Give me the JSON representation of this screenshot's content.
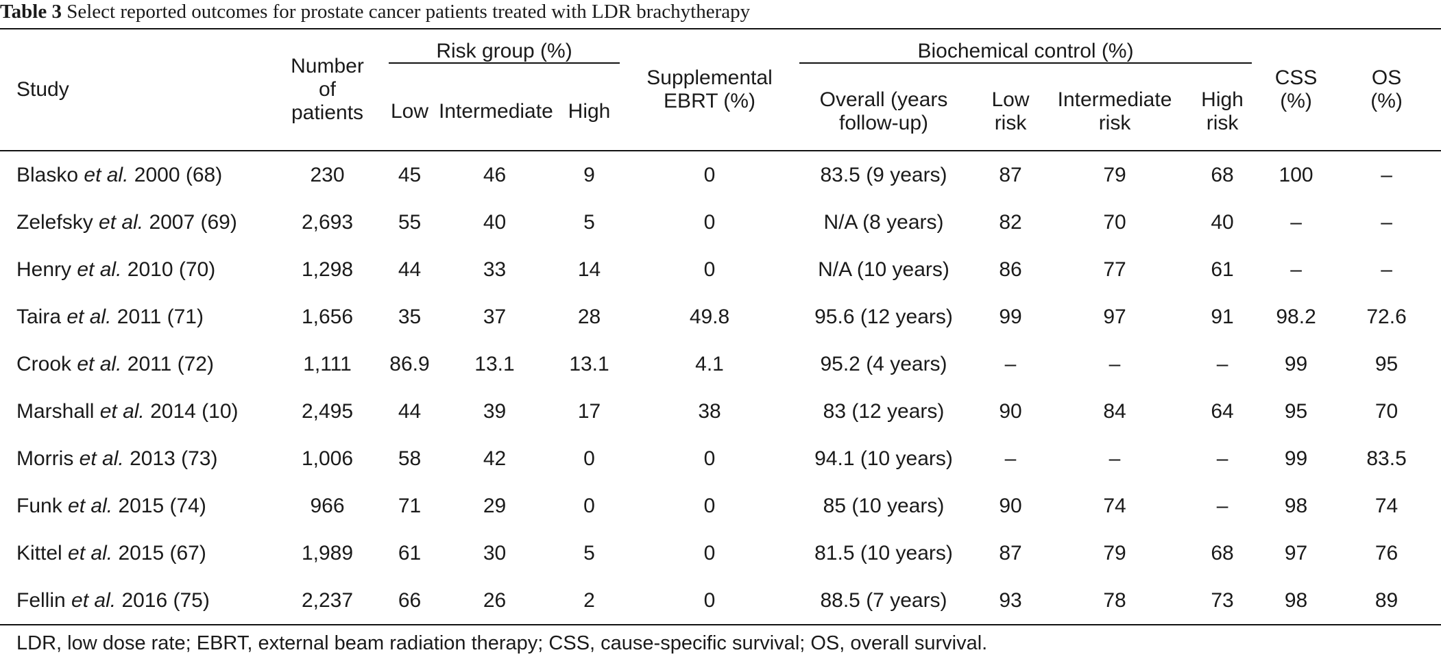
{
  "caption": {
    "label": "Table 3",
    "text": "Select reported outcomes for prostate cancer patients treated with LDR brachytherapy"
  },
  "headers": {
    "study": "Study",
    "patients": "Number of patients",
    "risk_group": "Risk group (%)",
    "low": "Low",
    "intermediate": "Intermediate",
    "high": "High",
    "ebrt": "Supplemental EBRT (%)",
    "biochemical": "Biochemical control (%)",
    "overall": "Overall (years follow-up)",
    "low_risk": "Low risk",
    "intermediate_risk": "Intermediate risk",
    "high_risk": "High risk",
    "css": "CSS (%)",
    "os": "OS (%)"
  },
  "rows": [
    {
      "author": "Blasko",
      "etal": "et al.",
      "year_ref": "2000 (68)",
      "patients": "230",
      "low": "45",
      "intermediate": "46",
      "high": "9",
      "ebrt": "0",
      "overall": "83.5 (9 years)",
      "low_risk": "87",
      "intermediate_risk": "79",
      "high_risk": "68",
      "css": "100",
      "os": "–"
    },
    {
      "author": "Zelefsky",
      "etal": "et al.",
      "year_ref": "2007 (69)",
      "patients": "2,693",
      "low": "55",
      "intermediate": "40",
      "high": "5",
      "ebrt": "0",
      "overall": "N/A (8 years)",
      "low_risk": "82",
      "intermediate_risk": "70",
      "high_risk": "40",
      "css": "–",
      "os": "–"
    },
    {
      "author": "Henry",
      "etal": "et al.",
      "year_ref": "2010 (70)",
      "patients": "1,298",
      "low": "44",
      "intermediate": "33",
      "high": "14",
      "ebrt": "0",
      "overall": "N/A (10 years)",
      "low_risk": "86",
      "intermediate_risk": "77",
      "high_risk": "61",
      "css": "–",
      "os": "–"
    },
    {
      "author": "Taira",
      "etal": "et al.",
      "year_ref": "2011 (71)",
      "patients": "1,656",
      "low": "35",
      "intermediate": "37",
      "high": "28",
      "ebrt": "49.8",
      "overall": "95.6 (12 years)",
      "low_risk": "99",
      "intermediate_risk": "97",
      "high_risk": "91",
      "css": "98.2",
      "os": "72.6"
    },
    {
      "author": "Crook",
      "etal": "et al.",
      "year_ref": "2011 (72)",
      "patients": "1,111",
      "low": "86.9",
      "intermediate": "13.1",
      "high": "13.1",
      "ebrt": "4.1",
      "overall": "95.2 (4 years)",
      "low_risk": "–",
      "intermediate_risk": "–",
      "high_risk": "–",
      "css": "99",
      "os": "95"
    },
    {
      "author": "Marshall",
      "etal": "et al.",
      "year_ref": "2014 (10)",
      "patients": "2,495",
      "low": "44",
      "intermediate": "39",
      "high": "17",
      "ebrt": "38",
      "overall": "83 (12 years)",
      "low_risk": "90",
      "intermediate_risk": "84",
      "high_risk": "64",
      "css": "95",
      "os": "70"
    },
    {
      "author": "Morris",
      "etal": "et al.",
      "year_ref": "2013 (73)",
      "patients": "1,006",
      "low": "58",
      "intermediate": "42",
      "high": "0",
      "ebrt": "0",
      "overall": "94.1 (10 years)",
      "low_risk": "–",
      "intermediate_risk": "–",
      "high_risk": "–",
      "css": "99",
      "os": "83.5"
    },
    {
      "author": "Funk",
      "etal": "et al.",
      "year_ref": "2015 (74)",
      "patients": "966",
      "low": "71",
      "intermediate": "29",
      "high": "0",
      "ebrt": "0",
      "overall": "85 (10 years)",
      "low_risk": "90",
      "intermediate_risk": "74",
      "high_risk": "–",
      "css": "98",
      "os": "74"
    },
    {
      "author": "Kittel",
      "etal": "et al.",
      "year_ref": "2015 (67)",
      "patients": "1,989",
      "low": "61",
      "intermediate": "30",
      "high": "5",
      "ebrt": "0",
      "overall": "81.5 (10 years)",
      "low_risk": "87",
      "intermediate_risk": "79",
      "high_risk": "68",
      "css": "97",
      "os": "76"
    },
    {
      "author": "Fellin",
      "etal": "et al.",
      "year_ref": "2016 (75)",
      "patients": "2,237",
      "low": "66",
      "intermediate": "26",
      "high": "2",
      "ebrt": "0",
      "overall": "88.5 (7 years)",
      "low_risk": "93",
      "intermediate_risk": "78",
      "high_risk": "73",
      "css": "98",
      "os": "89"
    }
  ],
  "footnote": "LDR, low dose rate; EBRT, external beam radiation therapy; CSS, cause-specific survival; OS, overall survival."
}
